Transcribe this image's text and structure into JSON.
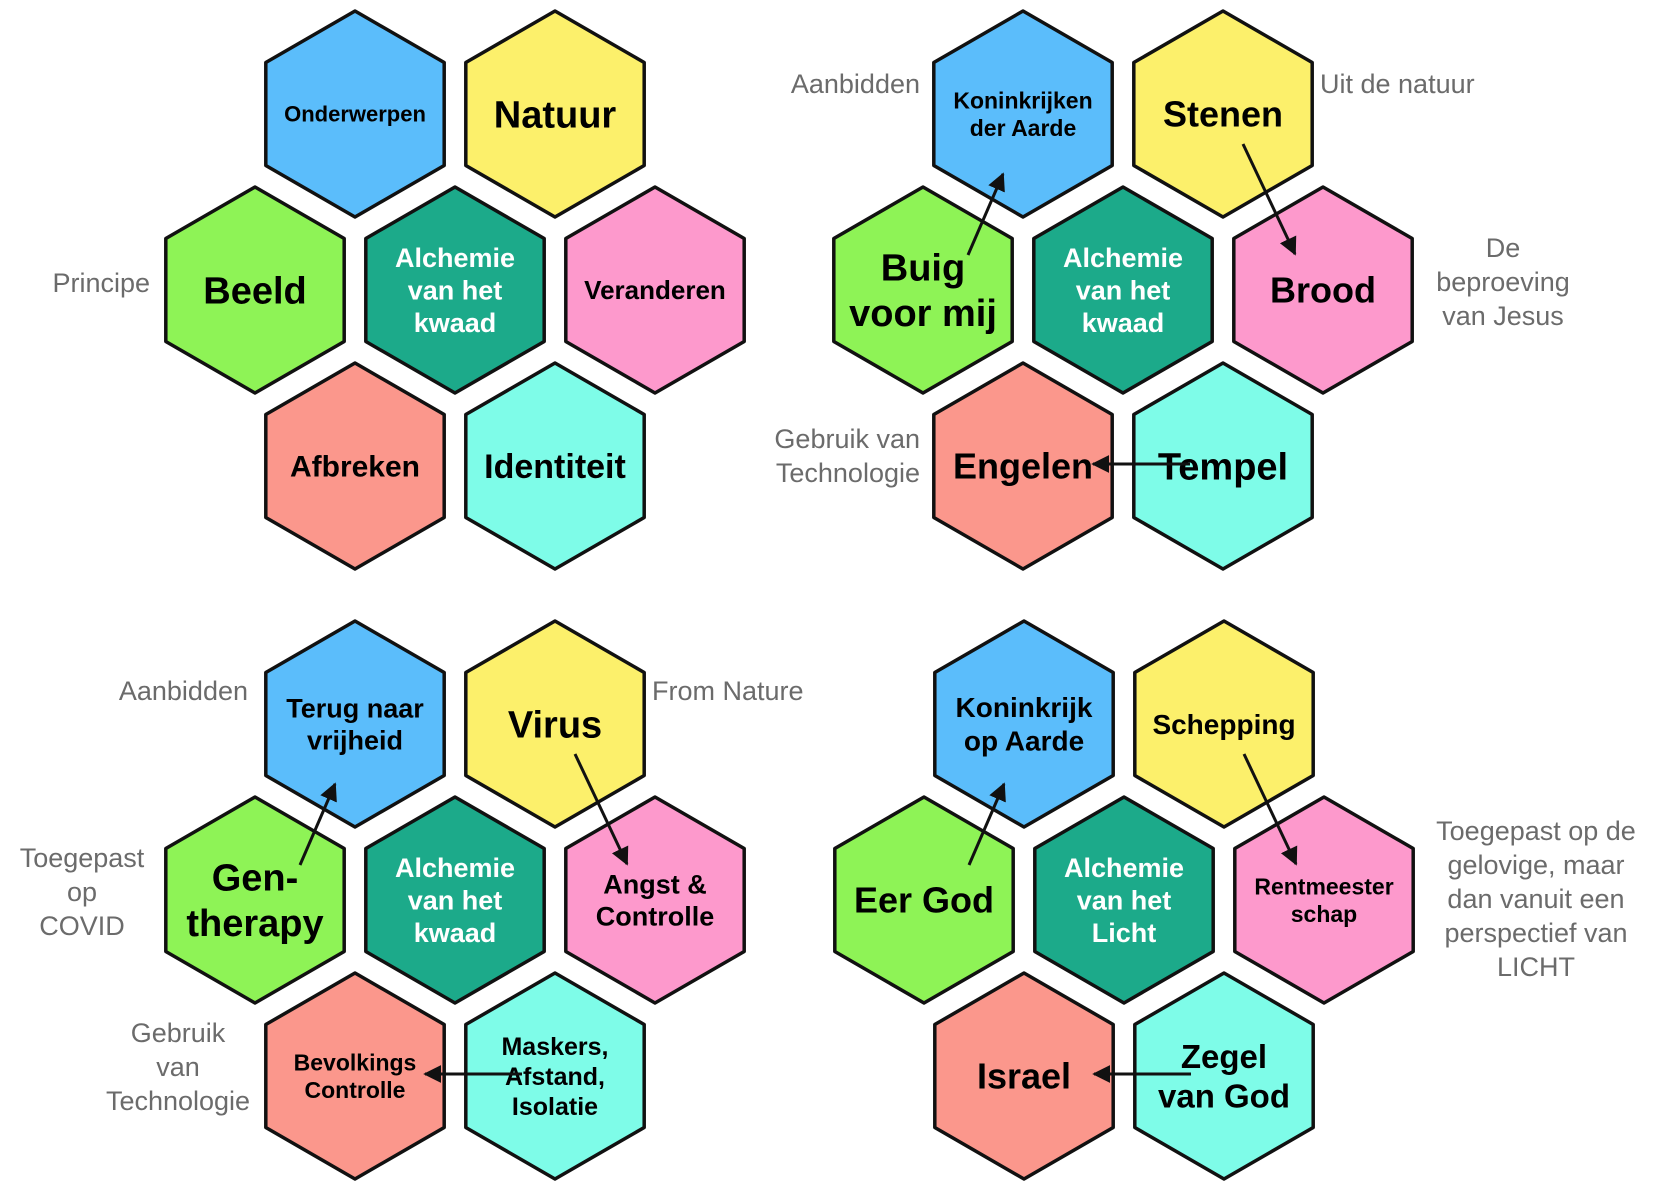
{
  "colors": {
    "blue": "#5BBDFB",
    "yellow": "#FCF06B",
    "green": "#8EF356",
    "teal": "#1CAA8A",
    "pink": "#FD99CC",
    "salmon": "#FB978C",
    "cyan": "#7EFCE8"
  },
  "clusters": [
    {
      "hexes": [
        {
          "id": "tl",
          "color": "blue",
          "lines": [
            "Onderwerpen"
          ]
        },
        {
          "id": "tr",
          "color": "yellow",
          "lines": [
            "Natuur"
          ]
        },
        {
          "id": "ml",
          "color": "green",
          "lines": [
            "Beeld"
          ]
        },
        {
          "id": "c",
          "color": "teal",
          "lines": [
            "Alchemie",
            "van het",
            "kwaad"
          ]
        },
        {
          "id": "mr",
          "color": "pink",
          "lines": [
            "Veranderen"
          ]
        },
        {
          "id": "bl",
          "color": "salmon",
          "lines": [
            "Afbreken"
          ]
        },
        {
          "id": "br",
          "color": "cyan",
          "lines": [
            "Identiteit"
          ]
        }
      ],
      "side_labels": [
        {
          "id": "ml",
          "lines": [
            "Principe"
          ]
        }
      ],
      "arrows": []
    },
    {
      "hexes": [
        {
          "id": "tl",
          "color": "blue",
          "lines": [
            "Koninkrijken",
            "der Aarde"
          ]
        },
        {
          "id": "tr",
          "color": "yellow",
          "lines": [
            "Stenen"
          ]
        },
        {
          "id": "ml",
          "color": "green",
          "lines": [
            "Buig",
            "voor mij"
          ]
        },
        {
          "id": "c",
          "color": "teal",
          "lines": [
            "Alchemie",
            "van het",
            "kwaad"
          ]
        },
        {
          "id": "mr",
          "color": "pink",
          "lines": [
            "Brood"
          ]
        },
        {
          "id": "bl",
          "color": "salmon",
          "lines": [
            "Engelen"
          ]
        },
        {
          "id": "br",
          "color": "cyan",
          "lines": [
            "Tempel"
          ]
        }
      ],
      "side_labels": [
        {
          "id": "tl",
          "lines": [
            "Aanbidden"
          ]
        },
        {
          "id": "tr",
          "lines": [
            "Uit de natuur"
          ]
        },
        {
          "id": "mr",
          "lines": [
            "De",
            "beproeving",
            "van Jesus"
          ]
        },
        {
          "id": "bl",
          "lines": [
            "Gebruik van",
            "Technologie"
          ]
        }
      ],
      "arrows": [
        {
          "from": "ml",
          "to": "tl"
        },
        {
          "from": "tr",
          "to": "mr"
        },
        {
          "from": "br",
          "to": "bl"
        }
      ]
    },
    {
      "hexes": [
        {
          "id": "tl",
          "color": "blue",
          "lines": [
            "Terug naar",
            "vrijheid"
          ]
        },
        {
          "id": "tr",
          "color": "yellow",
          "lines": [
            "Virus"
          ]
        },
        {
          "id": "ml",
          "color": "green",
          "lines": [
            "Gen-",
            "therapy"
          ]
        },
        {
          "id": "c",
          "color": "teal",
          "lines": [
            "Alchemie",
            "van het",
            "kwaad"
          ]
        },
        {
          "id": "mr",
          "color": "pink",
          "lines": [
            "Angst &",
            "Controlle"
          ]
        },
        {
          "id": "bl",
          "color": "salmon",
          "lines": [
            "Bevolkings",
            "Controlle"
          ]
        },
        {
          "id": "br",
          "color": "cyan",
          "lines": [
            "Maskers,",
            "Afstand,",
            "Isolatie"
          ]
        }
      ],
      "side_labels": [
        {
          "id": "tl",
          "lines": [
            "Aanbidden"
          ]
        },
        {
          "id": "tr",
          "lines": [
            "From Nature"
          ]
        },
        {
          "id": "ml",
          "lines": [
            "Toegepast",
            "op",
            "COVID"
          ]
        },
        {
          "id": "bl",
          "lines": [
            "Gebruik",
            "van",
            "Technologie"
          ]
        }
      ],
      "arrows": [
        {
          "from": "ml",
          "to": "tl"
        },
        {
          "from": "tr",
          "to": "mr"
        },
        {
          "from": "br",
          "to": "bl"
        }
      ]
    },
    {
      "hexes": [
        {
          "id": "tl",
          "color": "blue",
          "lines": [
            "Koninkrijk",
            "op Aarde"
          ]
        },
        {
          "id": "tr",
          "color": "yellow",
          "lines": [
            "Schepping"
          ]
        },
        {
          "id": "ml",
          "color": "green",
          "lines": [
            "Eer God"
          ]
        },
        {
          "id": "c",
          "color": "teal",
          "lines": [
            "Alchemie",
            "van het",
            "Licht"
          ]
        },
        {
          "id": "mr",
          "color": "pink",
          "lines": [
            "Rentmeester",
            "schap"
          ]
        },
        {
          "id": "bl",
          "color": "salmon",
          "lines": [
            "Israel"
          ]
        },
        {
          "id": "br",
          "color": "cyan",
          "lines": [
            "Zegel",
            "van God"
          ]
        }
      ],
      "side_labels": [
        {
          "id": "mr",
          "lines": [
            "Toegepast op de",
            "gelovige, maar",
            "dan vanuit een",
            "perspectief van",
            "LICHT"
          ]
        }
      ],
      "arrows": [
        {
          "from": "ml",
          "to": "tl"
        },
        {
          "from": "tr",
          "to": "mr"
        },
        {
          "from": "br",
          "to": "bl"
        }
      ]
    }
  ]
}
